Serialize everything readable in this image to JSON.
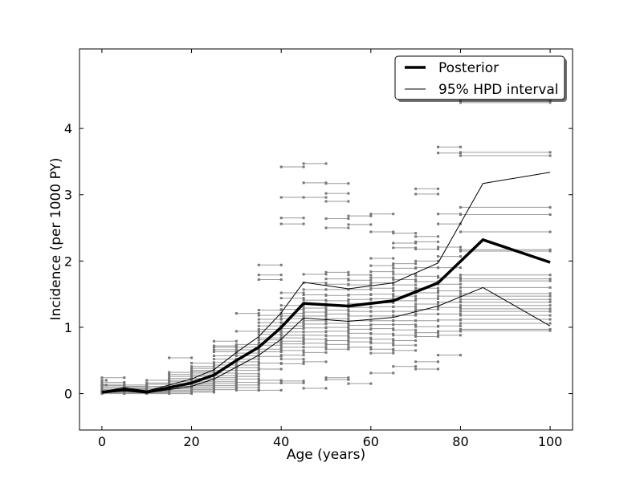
{
  "chart_data": {
    "type": "line",
    "xlabel": "Age (years)",
    "ylabel": "Incidence (per 1000 PY)",
    "xlim": [
      -5,
      105
    ],
    "ylim": [
      -0.55,
      5.2
    ],
    "xticks": [
      0,
      20,
      40,
      60,
      80,
      100
    ],
    "yticks": [
      0,
      1,
      2,
      3,
      4
    ],
    "grid": false,
    "legend_position": "top-right",
    "legend": [
      {
        "label": "Posterior",
        "style": "thick"
      },
      {
        "label": "95% HPD interval",
        "style": "thin"
      }
    ],
    "series": [
      {
        "name": "Posterior",
        "x": [
          0,
          5,
          10,
          15,
          20,
          25,
          30,
          35,
          40,
          45,
          55,
          65,
          75,
          85,
          100
        ],
        "y": [
          0.02,
          0.06,
          0.02,
          0.09,
          0.16,
          0.28,
          0.5,
          0.7,
          1.0,
          1.36,
          1.32,
          1.4,
          1.67,
          2.32,
          1.98
        ],
        "color": "#000000"
      },
      {
        "name": "95% HPD interval",
        "x": [
          0,
          5,
          10,
          15,
          20,
          25,
          30,
          35,
          40,
          45,
          55,
          65,
          75,
          85,
          100
        ],
        "y": [
          0.03,
          0.09,
          0.04,
          0.13,
          0.22,
          0.36,
          0.62,
          0.86,
          1.22,
          1.68,
          1.58,
          1.67,
          1.97,
          3.17,
          3.34
        ],
        "color": "#000000"
      },
      {
        "name": "95% HPD interval",
        "x": [
          0,
          5,
          10,
          15,
          20,
          25,
          30,
          35,
          40,
          45,
          55,
          65,
          75,
          85,
          100
        ],
        "y": [
          0.01,
          0.04,
          0.01,
          0.06,
          0.11,
          0.22,
          0.4,
          0.58,
          0.82,
          1.14,
          1.09,
          1.15,
          1.32,
          1.6,
          1.02
        ],
        "color": "#000000"
      }
    ],
    "data_segments": [
      {
        "x0": 0,
        "x1": 5,
        "y": [
          0.24,
          0.17,
          0.14,
          0.12,
          0.1,
          0.08,
          0.06,
          0.05,
          0.04,
          0.03,
          0.02,
          0.01,
          0.0
        ]
      },
      {
        "x0": 0,
        "x1": 1,
        "y": [
          0.2,
          0.13
        ]
      },
      {
        "x0": 5,
        "x1": 10,
        "y": [
          0.13,
          0.11,
          0.1,
          0.08,
          0.07,
          0.06,
          0.05,
          0.04,
          0.03,
          0.02,
          0.01,
          0.0
        ]
      },
      {
        "x0": 10,
        "x1": 15,
        "y": [
          0.2,
          0.16,
          0.14,
          0.11,
          0.09,
          0.07,
          0.05,
          0.04,
          0.03,
          0.02,
          0.01,
          0.0
        ]
      },
      {
        "x0": 15,
        "x1": 20,
        "y": [
          0.54,
          0.32,
          0.29,
          0.26,
          0.23,
          0.2,
          0.18,
          0.15,
          0.13,
          0.11,
          0.09,
          0.07,
          0.05,
          0.03,
          0.02,
          0.0
        ]
      },
      {
        "x0": 20,
        "x1": 25,
        "y": [
          0.46,
          0.41,
          0.38,
          0.35,
          0.33,
          0.31,
          0.28,
          0.26,
          0.23,
          0.21,
          0.18,
          0.16,
          0.14,
          0.12,
          0.1,
          0.08,
          0.06,
          0.04,
          0.02
        ]
      },
      {
        "x0": 25,
        "x1": 30,
        "y": [
          0.79,
          0.72,
          0.7,
          0.66,
          0.63,
          0.57,
          0.52,
          0.47,
          0.43,
          0.39,
          0.35,
          0.31,
          0.27,
          0.24,
          0.21,
          0.18,
          0.15,
          0.12,
          0.09,
          0.06
        ]
      },
      {
        "x0": 30,
        "x1": 35,
        "y": [
          1.21,
          0.94,
          0.74,
          0.7,
          0.66,
          0.61,
          0.57,
          0.52,
          0.48,
          0.43,
          0.39,
          0.35,
          0.3,
          0.26,
          0.22,
          0.17,
          0.13,
          0.09,
          0.05
        ]
      },
      {
        "x0": 35,
        "x1": 40,
        "y": [
          1.94,
          1.79,
          1.72,
          1.26,
          1.18,
          1.12,
          1.07,
          1.02,
          0.97,
          0.93,
          0.89,
          0.84,
          0.81,
          0.77,
          0.73,
          0.67,
          0.63,
          0.56,
          0.46,
          0.37,
          0.2,
          0.16,
          0.05
        ]
      },
      {
        "x0": 40,
        "x1": 45,
        "y": [
          3.42,
          2.96,
          2.65,
          2.56,
          1.52,
          1.44,
          1.33,
          1.27,
          1.21,
          1.17,
          1.13,
          1.07,
          1.02,
          0.98,
          0.93,
          0.88,
          0.84,
          0.79,
          0.75,
          0.7,
          0.65,
          0.58,
          0.52,
          0.45,
          0.19,
          0.16
        ]
      },
      {
        "x0": 45,
        "x1": 50,
        "y": [
          3.47,
          3.18,
          2.96,
          1.8,
          1.67,
          1.57,
          1.49,
          1.41,
          1.35,
          1.29,
          1.23,
          1.17,
          1.1,
          1.05,
          0.99,
          0.93,
          0.88,
          0.82,
          0.76,
          0.7,
          0.62,
          0.48,
          0.08
        ]
      },
      {
        "x0": 50,
        "x1": 55,
        "y": [
          3.17,
          3.02,
          2.9,
          2.64,
          2.5,
          1.83,
          1.73,
          1.65,
          1.57,
          1.48,
          1.4,
          1.33,
          1.26,
          1.2,
          1.13,
          1.06,
          1.0,
          0.94,
          0.87,
          0.8,
          0.74,
          0.67,
          0.24,
          0.21
        ]
      },
      {
        "x0": 55,
        "x1": 60,
        "y": [
          2.68,
          2.55,
          1.79,
          1.71,
          1.64,
          1.57,
          1.49,
          1.42,
          1.36,
          1.3,
          1.24,
          1.17,
          1.1,
          1.03,
          0.97,
          0.91,
          0.84,
          0.78,
          0.7,
          0.15
        ]
      },
      {
        "x0": 60,
        "x1": 65,
        "y": [
          2.71,
          2.44,
          2.04,
          1.93,
          1.84,
          1.75,
          1.67,
          1.59,
          1.5,
          1.43,
          1.37,
          1.31,
          1.24,
          1.17,
          1.1,
          1.04,
          0.98,
          0.9,
          0.82,
          0.76,
          0.67,
          0.61,
          0.31
        ]
      },
      {
        "x0": 65,
        "x1": 70,
        "y": [
          2.42,
          2.27,
          2.2,
          1.96,
          1.89,
          1.8,
          1.72,
          1.64,
          1.55,
          1.47,
          1.4,
          1.31,
          1.24,
          1.18,
          1.1,
          1.04,
          0.96,
          0.88,
          0.8,
          0.73,
          0.65,
          0.41
        ]
      },
      {
        "x0": 70,
        "x1": 75,
        "y": [
          3.09,
          3.01,
          2.37,
          2.29,
          2.18,
          2.0,
          1.9,
          1.77,
          1.69,
          1.59,
          1.52,
          1.43,
          1.35,
          1.27,
          1.2,
          1.1,
          1.01,
          0.92,
          0.86,
          0.48,
          0.37
        ]
      },
      {
        "x0": 75,
        "x1": 80,
        "y": [
          3.72,
          3.63,
          2.71,
          2.56,
          2.21,
          2.07,
          1.9,
          1.75,
          1.65,
          1.55,
          1.47,
          1.38,
          1.3,
          1.2,
          1.11,
          1.02,
          0.94,
          0.88,
          0.58
        ]
      },
      {
        "x0": 80,
        "x1": 100,
        "y": [
          4.43,
          4.39,
          3.64,
          3.59,
          2.81,
          2.7,
          2.44,
          2.17,
          2.15,
          1.79,
          1.73,
          1.7,
          1.6,
          1.51,
          1.47,
          1.42,
          1.38,
          1.33,
          1.28,
          1.24,
          1.18,
          1.12,
          1.06,
          0.97,
          0.95
        ]
      }
    ]
  }
}
